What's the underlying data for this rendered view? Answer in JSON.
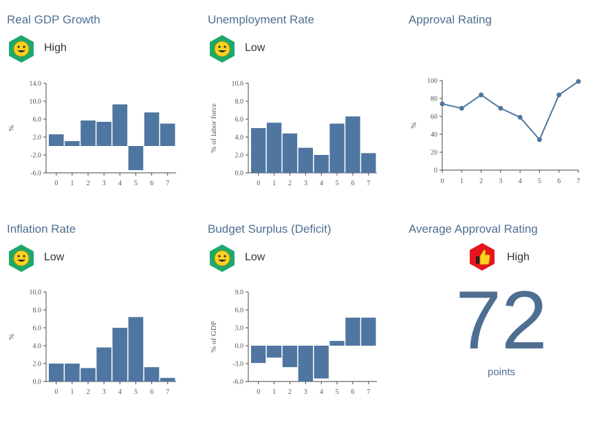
{
  "colors": {
    "bar": "#4e76a0",
    "title": "#4e6f92",
    "good": "#1fa86a",
    "bad": "#e8141c",
    "face": "#ffd21f"
  },
  "panels": {
    "gdp": {
      "title": "Real GDP Growth",
      "status": "High",
      "icon": "smiley-icon"
    },
    "unemployment": {
      "title": "Unemployment Rate",
      "status": "Low",
      "icon": "smiley-icon"
    },
    "approval": {
      "title": "Approval Rating"
    },
    "inflation": {
      "title": "Inflation Rate",
      "status": "Low",
      "icon": "smiley-icon"
    },
    "budget": {
      "title": "Budget Surplus (Deficit)",
      "status": "Low",
      "icon": "smiley-icon"
    },
    "average": {
      "title": "Average Approval Rating",
      "status": "High",
      "icon": "thumbs-up-icon",
      "value": "72",
      "unit": "points"
    }
  },
  "chart_data": [
    {
      "id": "gdp",
      "type": "bar",
      "categories": [
        "0",
        "1",
        "2",
        "3",
        "4",
        "5",
        "6",
        "7"
      ],
      "values": [
        2.6,
        1.1,
        5.7,
        5.4,
        9.3,
        -5.4,
        7.5,
        5.0
      ],
      "ylim": [
        -6,
        14
      ],
      "yticks": [
        "-6.0",
        "-2.0",
        "2.0",
        "6.0",
        "10.0",
        "14.0"
      ],
      "ylabel": "%",
      "xlabel": ""
    },
    {
      "id": "unemployment",
      "type": "bar",
      "categories": [
        "0",
        "1",
        "2",
        "3",
        "4",
        "5",
        "6",
        "7"
      ],
      "values": [
        5.0,
        5.6,
        4.4,
        2.8,
        2.0,
        5.5,
        6.3,
        2.2
      ],
      "ylim": [
        0,
        10
      ],
      "yticks": [
        "0.0",
        "2.0",
        "4.0",
        "6.0",
        "8.0",
        "10.0"
      ],
      "ylabel": "% of labor force",
      "xlabel": ""
    },
    {
      "id": "approval",
      "type": "line",
      "categories": [
        "0",
        "1",
        "2",
        "3",
        "4",
        "5",
        "6",
        "7"
      ],
      "values": [
        74,
        69,
        84,
        69,
        59,
        34,
        84,
        99
      ],
      "ylim": [
        0,
        100
      ],
      "yticks": [
        "0",
        "20",
        "40",
        "60",
        "80",
        "100"
      ],
      "ylabel": "%",
      "xlabel": ""
    },
    {
      "id": "inflation",
      "type": "bar",
      "categories": [
        "0",
        "1",
        "2",
        "3",
        "4",
        "5",
        "6",
        "7"
      ],
      "values": [
        2.0,
        2.0,
        1.5,
        3.8,
        6.0,
        7.2,
        1.6,
        0.4
      ],
      "ylim": [
        0,
        10
      ],
      "yticks": [
        "0.0",
        "2.0",
        "4.0",
        "6.0",
        "8.0",
        "10.0"
      ],
      "ylabel": "%",
      "xlabel": ""
    },
    {
      "id": "budget",
      "type": "bar",
      "categories": [
        "0",
        "1",
        "2",
        "3",
        "4",
        "5",
        "6",
        "7"
      ],
      "values": [
        -2.9,
        -2.0,
        -3.6,
        -6.0,
        -5.5,
        0.8,
        4.7,
        4.7
      ],
      "ylim": [
        -6,
        9
      ],
      "yticks": [
        "-6.0",
        "-3.0",
        "0.0",
        "3.0",
        "6.0",
        "9.0"
      ],
      "ylabel": "% of GDP",
      "xlabel": ""
    }
  ]
}
